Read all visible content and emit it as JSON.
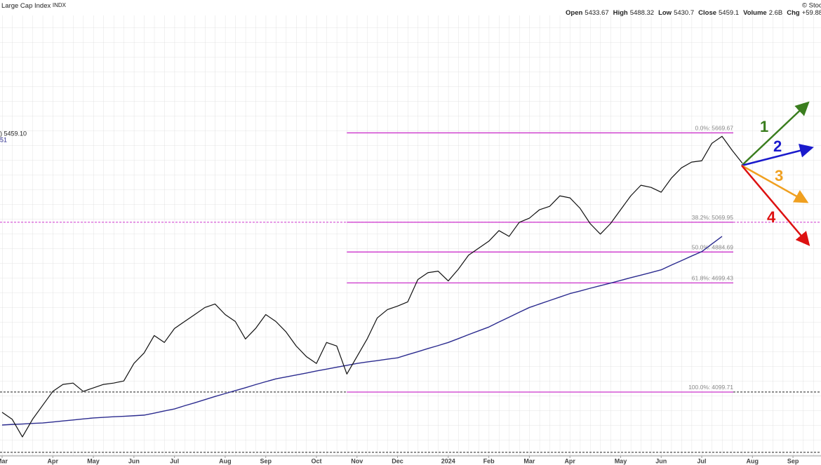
{
  "chart_data": {
    "type": "line",
    "title": "Large Cap Index",
    "symbol": "INDX",
    "source": "© StockC",
    "ohlc": [
      {
        "label": "Open",
        "value": 5433.67
      },
      {
        "label": "High",
        "value": 5488.32
      },
      {
        "label": "Low",
        "value": 5430.7
      },
      {
        "label": "Close",
        "value": 5459.1
      },
      {
        "label": "Volume",
        "value": "2.6B"
      },
      {
        "label": "Chg",
        "value": "+59.88"
      }
    ],
    "legend_fragments": [
      ") 5459.10",
      "51"
    ],
    "log_scale": true,
    "ylim": [
      3785,
      6590
    ],
    "categories": [
      "Mar",
      null,
      null,
      null,
      null,
      "Apr",
      null,
      null,
      null,
      "May",
      null,
      null,
      null,
      "Jun",
      null,
      null,
      null,
      "Jul",
      null,
      null,
      null,
      null,
      "Aug",
      null,
      null,
      null,
      "Sep",
      null,
      null,
      null,
      null,
      "Oct",
      null,
      null,
      null,
      "Nov",
      null,
      null,
      null,
      "Dec",
      null,
      null,
      null,
      null,
      "2024",
      null,
      null,
      null,
      "Feb",
      null,
      null,
      null,
      "Mar",
      null,
      null,
      null,
      "Apr",
      null,
      null,
      null,
      null,
      "May",
      null,
      null,
      null,
      "Jun",
      null,
      null,
      null,
      "Jul",
      null,
      null,
      null,
      null,
      "Aug",
      null,
      null,
      null,
      "Sep"
    ],
    "series": [
      {
        "color": "#111111",
        "values": [
          3997,
          3962,
          3876,
          3962,
          4032,
          4103,
          4139,
          4146,
          4103,
          4121,
          4139,
          4146,
          4157,
          4249,
          4305,
          4400,
          4362,
          4439,
          4478,
          4517,
          4557,
          4577,
          4517,
          4478,
          4381,
          4439,
          4517,
          4478,
          4420,
          4343,
          4286,
          4249,
          4362,
          4343,
          4193,
          4286,
          4381,
          4498,
          4545,
          4565,
          4589,
          4719,
          4760,
          4769,
          4711,
          4781,
          4865,
          4908,
          4951,
          5017,
          4981,
          5069,
          5096,
          5150,
          5172,
          5240,
          5227,
          5159,
          5061,
          4995,
          5061,
          5150,
          5240,
          5310,
          5296,
          5264,
          5357,
          5427,
          5466,
          5475,
          5596,
          5645,
          5547,
          5459.1,
          null,
          null,
          null,
          null,
          null
        ]
      },
      {
        "color": "#2b2b8f",
        "values": [
          3934,
          3937,
          3939,
          3942,
          3944,
          3949,
          3954,
          3959,
          3964,
          3969,
          3972,
          3975,
          3977,
          3980,
          3983,
          3993,
          4004,
          4014,
          4030,
          4045,
          4061,
          4077,
          4092,
          4107,
          4122,
          4138,
          4153,
          4168,
          4178,
          4188,
          4198,
          4209,
          4219,
          4229,
          4239,
          4249,
          4257,
          4264,
          4272,
          4279,
          4296,
          4312,
          4329,
          4345,
          4362,
          4383,
          4405,
          4426,
          4447,
          4475,
          4502,
          4530,
          4557,
          4577,
          4597,
          4617,
          4637,
          4652,
          4668,
          4683,
          4698,
          4714,
          4730,
          4745,
          4761,
          4777,
          4805,
          4832,
          4860,
          4887,
          4934,
          4981,
          null,
          null,
          null,
          null,
          null,
          null,
          null
        ]
      }
    ],
    "fib_color": "#cc33cc",
    "fib_levels": [
      {
        "label": "0.0%:",
        "value": 5669.67
      },
      {
        "label": "38.2%:",
        "value": 5069.95
      },
      {
        "label": "50.0%:",
        "value": 4884.69
      },
      {
        "label": "61.8%:",
        "value": 4699.43
      },
      {
        "label": "100.0%:",
        "value": 4099.71
      }
    ],
    "hlines": [
      {
        "value": 5069.95,
        "color": "#cc33cc"
      },
      {
        "value": 4099.71,
        "color": "#000000"
      },
      {
        "value": 3802,
        "color": "#000000"
      }
    ],
    "annotations": [
      {
        "text": "1",
        "color": "#3a7d1e"
      },
      {
        "text": "2",
        "color": "#1a1acc"
      },
      {
        "text": "3",
        "color": "#f0a020"
      },
      {
        "text": "4",
        "color": "#dd1111"
      }
    ]
  }
}
